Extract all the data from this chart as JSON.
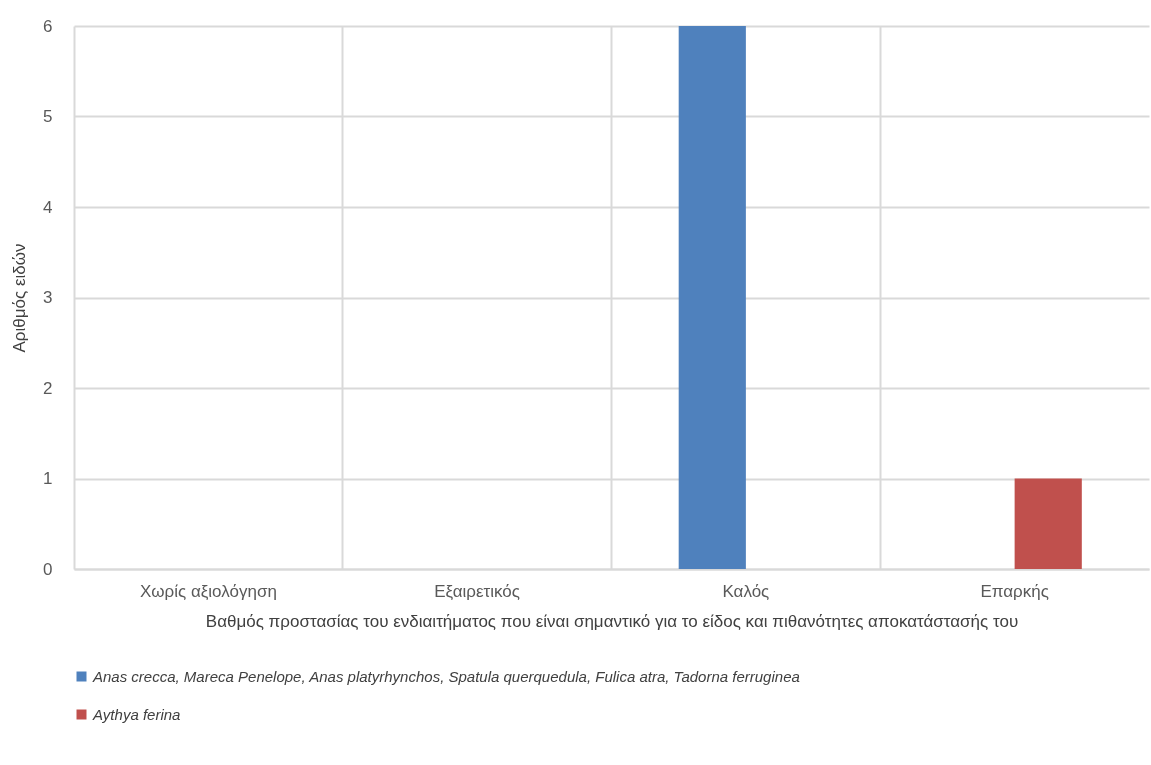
{
  "chart_data": {
    "type": "bar",
    "xlabel": "Βαθμός προστασίας του ενδιαιτήματος που είναι σημαντικό για το είδος και πιθανότητες αποκατάστασής του",
    "ylabel": "Αριθμός ειδών",
    "categories": [
      "Χωρίς αξιολόγηση",
      "Εξαιρετικός",
      "Καλός",
      "Επαρκής"
    ],
    "series": [
      {
        "name": "Anas crecca, Mareca Penelope, Anas platyrhynchos, Spatula querquedula, Fulica atra, Tadorna ferruginea",
        "color": "#4f81bd",
        "values": [
          0,
          0,
          6,
          0
        ]
      },
      {
        "name": "Aythya ferina",
        "color": "#c0504d",
        "values": [
          0,
          0,
          0,
          1
        ]
      }
    ],
    "ylim": [
      0,
      6
    ],
    "yticks": [
      0,
      1,
      2,
      3,
      4,
      5,
      6
    ],
    "grid": true,
    "legend": "bottom left"
  }
}
